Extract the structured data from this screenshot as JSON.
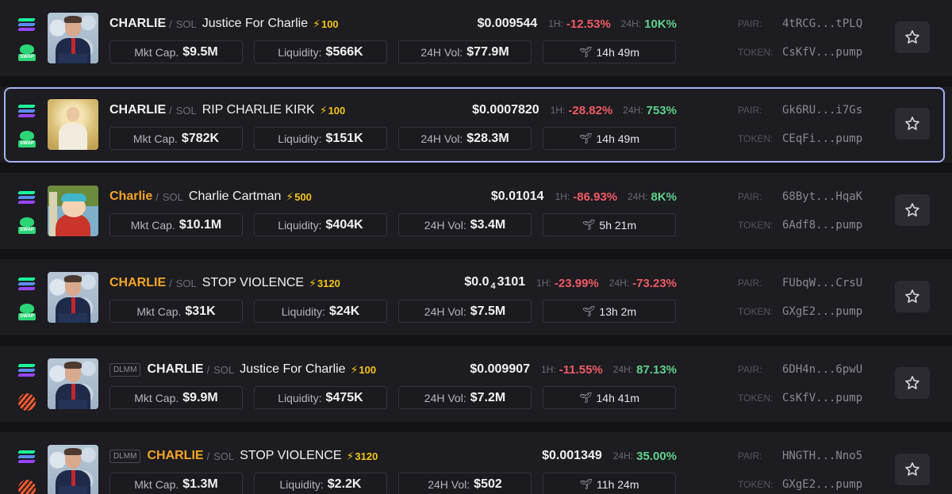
{
  "colors": {
    "background": "#131316",
    "row": "#1c1c21",
    "selected_border": "#a7b0f0",
    "negative": "#f05b63",
    "positive": "#5fd28c",
    "boost": "#f5c518",
    "orange_ticker": "#f5a623"
  },
  "labels": {
    "slash": "/",
    "h1": "1H:",
    "h24": "24H:",
    "mktcap": "Mkt Cap.",
    "liquidity": "Liquidity:",
    "vol": "24H Vol:",
    "pair": "PAIR:",
    "token": "TOKEN:",
    "swap": "SWAP",
    "bolt": "⚡",
    "age_icon": "seedling-icon"
  },
  "rows": [
    {
      "ticker": "CHARLIE",
      "chain": "SOL",
      "name": "Justice For Charlie",
      "boost": "100",
      "price": "$0.009544",
      "change_1h": "-12.53%",
      "change_24h": "10K%",
      "mkt_cap": "$9.5M",
      "liquidity": "$566K",
      "vol_24h": "$77.9M",
      "age": "14h 49m",
      "pair": "4tRCG...tPLQ",
      "token": "CsKfV...pump"
    },
    {
      "ticker": "CHARLIE",
      "chain": "SOL",
      "name": "RIP CHARLIE KIRK",
      "boost": "100",
      "price": "$0.0007820",
      "change_1h": "-28.82%",
      "change_24h": "753%",
      "mkt_cap": "$782K",
      "liquidity": "$151K",
      "vol_24h": "$28.3M",
      "age": "14h 49m",
      "pair": "Gk6RU...i7Gs",
      "token": "CEqFi...pump"
    },
    {
      "ticker": "Charlie",
      "chain": "SOL",
      "name": "Charlie Cartman",
      "boost": "500",
      "price": "$0.01014",
      "change_1h": "-86.93%",
      "change_24h": "8K%",
      "mkt_cap": "$10.1M",
      "liquidity": "$404K",
      "vol_24h": "$3.4M",
      "age": "5h 21m",
      "pair": "68Byt...HqaK",
      "token": "6Adf8...pump"
    },
    {
      "ticker": "CHARLIE",
      "chain": "SOL",
      "name": "STOP VIOLENCE",
      "boost": "3120",
      "price_prefix": "$0.0",
      "price_sub": "4",
      "price_suffix": "3101",
      "change_1h": "-23.99%",
      "change_24h": "-73.23%",
      "mkt_cap": "$31K",
      "liquidity": "$24K",
      "vol_24h": "$7.5M",
      "age": "13h 2m",
      "pair": "FUbqW...CrsU",
      "token": "GXgE2...pump"
    },
    {
      "badge": "DLMM",
      "ticker": "CHARLIE",
      "chain": "SOL",
      "name": "Justice For Charlie",
      "boost": "100",
      "price": "$0.009907",
      "change_1h": "-11.55%",
      "change_24h": "87.13%",
      "mkt_cap": "$9.9M",
      "liquidity": "$475K",
      "vol_24h": "$7.2M",
      "age": "14h 41m",
      "pair": "6DH4n...6pwU",
      "token": "CsKfV...pump"
    },
    {
      "badge": "DLMM",
      "ticker": "CHARLIE",
      "chain": "SOL",
      "name": "STOP VIOLENCE",
      "boost": "3120",
      "price": "$0.001349",
      "change_24h": "35.00%",
      "mkt_cap": "$1.3M",
      "liquidity": "$2.2K",
      "vol_24h": "$502",
      "age": "11h 24m",
      "pair": "HNGTH...Nno5",
      "token": "GXgE2...pump"
    }
  ]
}
